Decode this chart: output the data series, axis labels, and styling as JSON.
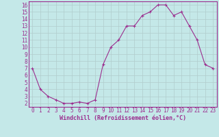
{
  "x": [
    0,
    1,
    2,
    3,
    4,
    5,
    6,
    7,
    8,
    9,
    10,
    11,
    12,
    13,
    14,
    15,
    16,
    17,
    18,
    19,
    20,
    21,
    22,
    23
  ],
  "y": [
    7,
    4,
    3,
    2.5,
    2,
    2,
    2.2,
    2,
    2.5,
    7.5,
    10,
    11,
    13,
    13,
    14.5,
    15,
    16,
    16,
    14.5,
    15,
    13,
    11,
    7.5,
    7
  ],
  "line_color": "#9b2d8e",
  "marker": "+",
  "bg_color": "#c4e8e8",
  "grid_color": "#b0cccc",
  "xlabel": "Windchill (Refroidissement éolien,°C)",
  "xlabel_fontsize": 6.0,
  "ylabel_ticks": [
    2,
    3,
    4,
    5,
    6,
    7,
    8,
    9,
    10,
    11,
    12,
    13,
    14,
    15,
    16
  ],
  "xlim": [
    -0.5,
    23.5
  ],
  "ylim": [
    1.5,
    16.5
  ],
  "tick_fontsize": 5.5
}
